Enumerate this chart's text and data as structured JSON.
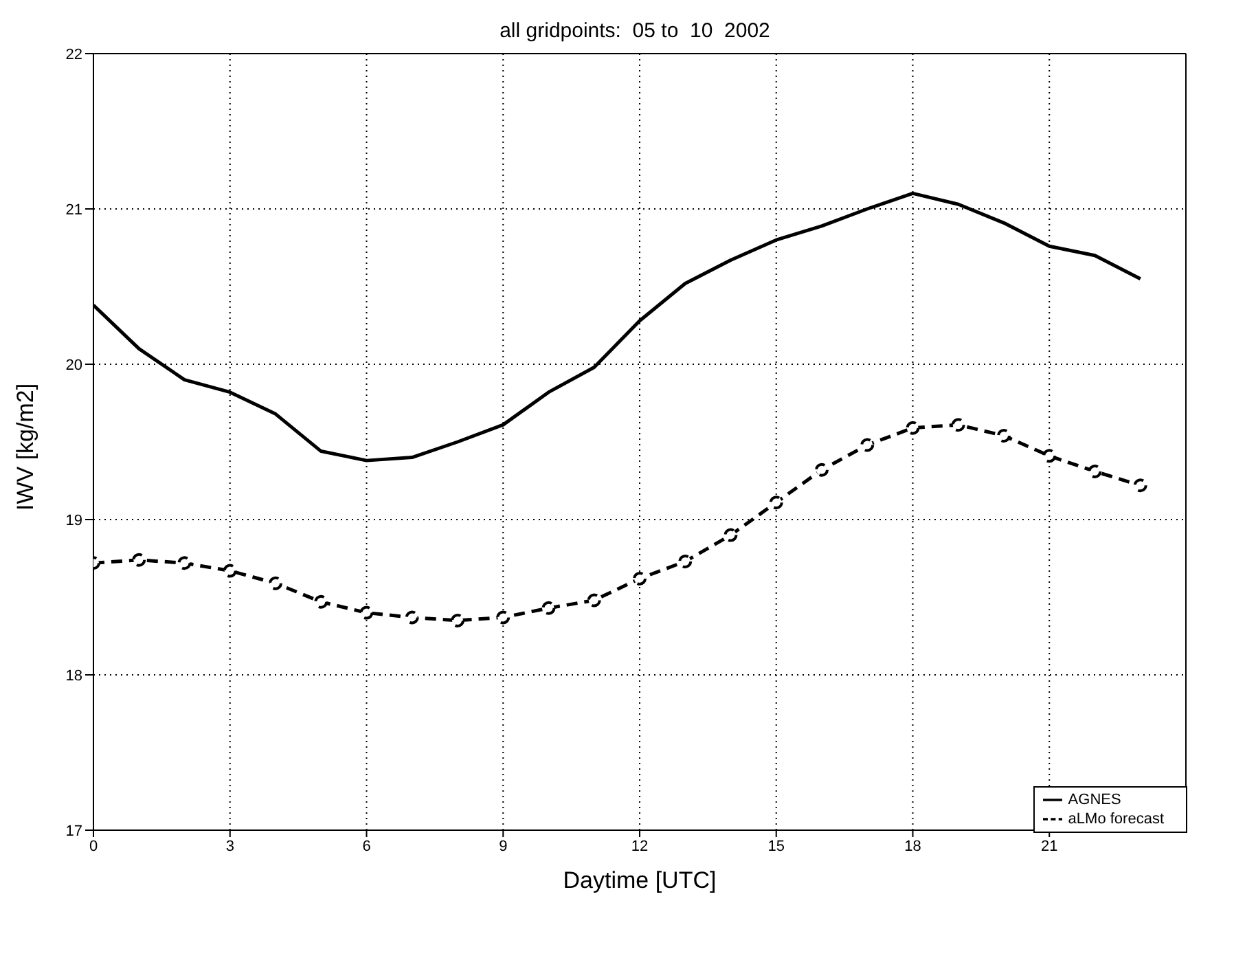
{
  "chart_data": {
    "type": "line",
    "title": "all gridpoints:  05 to  10  2002",
    "xlabel": "Daytime [UTC]",
    "ylabel": "IWV [kg/m2]",
    "x": [
      0,
      1,
      2,
      3,
      4,
      5,
      6,
      7,
      8,
      9,
      10,
      11,
      12,
      13,
      14,
      15,
      16,
      17,
      18,
      19,
      20,
      21,
      22,
      23
    ],
    "series": [
      {
        "name": "AGNES",
        "color": "#000000",
        "marker": "none",
        "line_style": "solid",
        "values": [
          20.38,
          20.1,
          19.9,
          19.82,
          19.68,
          19.44,
          19.38,
          19.4,
          19.5,
          19.61,
          19.82,
          19.98,
          20.28,
          20.52,
          20.67,
          20.8,
          20.89,
          21.0,
          21.1,
          21.03,
          20.91,
          20.76,
          20.7,
          20.55
        ]
      },
      {
        "name": "aLMo forecast",
        "color": "#000000",
        "marker": "circle",
        "line_style": "dashed",
        "values": [
          18.72,
          18.74,
          18.72,
          18.67,
          18.59,
          18.47,
          18.4,
          18.37,
          18.35,
          18.37,
          18.43,
          18.48,
          18.62,
          18.73,
          18.9,
          19.11,
          19.32,
          19.48,
          19.59,
          19.61,
          19.54,
          19.41,
          19.31,
          19.22
        ]
      }
    ],
    "xlim": [
      0,
      24
    ],
    "xticks": [
      0,
      3,
      6,
      9,
      12,
      15,
      18,
      21
    ],
    "ylim": [
      17,
      22
    ],
    "yticks": [
      17,
      18,
      19,
      20,
      21,
      22
    ],
    "grid": true,
    "legend": "bottom right"
  }
}
